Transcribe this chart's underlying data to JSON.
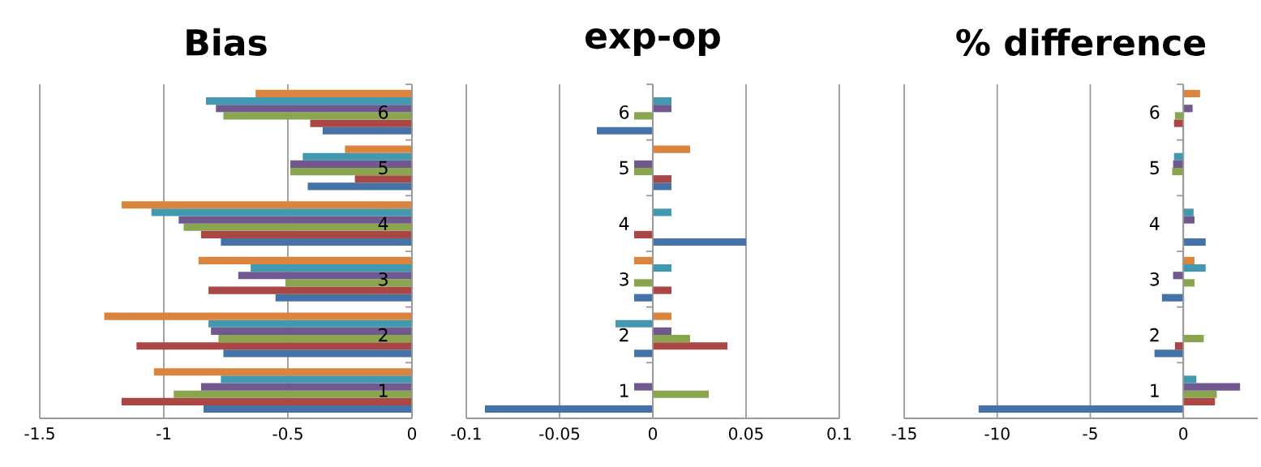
{
  "chart_data": [
    {
      "type": "bar",
      "orientation": "horizontal",
      "title": "Bias",
      "categories": [
        "6",
        "5",
        "4",
        "3",
        "2",
        "1"
      ],
      "xlim": [
        -1.5,
        0
      ],
      "xticks": [
        -1.5,
        -1,
        -0.5,
        0
      ],
      "grid": "x",
      "series": [
        {
          "color": "#4572a7",
          "values": [
            -0.36,
            -0.42,
            -0.77,
            -0.55,
            -0.76,
            -0.84
          ]
        },
        {
          "color": "#aa4643",
          "values": [
            -0.41,
            -0.23,
            -0.85,
            -0.82,
            -1.11,
            -1.17
          ]
        },
        {
          "color": "#89a54e",
          "values": [
            -0.76,
            -0.49,
            -0.92,
            -0.51,
            -0.78,
            -0.96
          ]
        },
        {
          "color": "#71588f",
          "values": [
            -0.79,
            -0.49,
            -0.94,
            -0.7,
            -0.81,
            -0.85
          ]
        },
        {
          "color": "#4198af",
          "values": [
            -0.83,
            -0.44,
            -1.05,
            -0.65,
            -0.82,
            -0.77
          ]
        },
        {
          "color": "#db843d",
          "values": [
            -0.63,
            -0.27,
            -1.17,
            -0.86,
            -1.24,
            -1.04
          ]
        }
      ]
    },
    {
      "type": "bar",
      "orientation": "horizontal",
      "title": "exp-op",
      "categories": [
        "6",
        "5",
        "4",
        "3",
        "2",
        "1"
      ],
      "xlim": [
        -0.1,
        0.1
      ],
      "xticks": [
        -0.1,
        -0.05,
        0,
        0.05,
        0.1
      ],
      "grid": "x",
      "series": [
        {
          "color": "#4572a7",
          "values": [
            -0.03,
            0.01,
            0.05,
            -0.01,
            -0.01,
            -0.09
          ]
        },
        {
          "color": "#aa4643",
          "values": [
            0,
            0.01,
            -0.01,
            0.01,
            0.04,
            0
          ]
        },
        {
          "color": "#89a54e",
          "values": [
            -0.01,
            -0.01,
            0,
            -0.01,
            0.02,
            0.03
          ]
        },
        {
          "color": "#71588f",
          "values": [
            0.01,
            -0.01,
            0,
            0,
            0.01,
            -0.01
          ]
        },
        {
          "color": "#4198af",
          "values": [
            0.01,
            0,
            0.01,
            0.01,
            -0.02,
            0
          ]
        },
        {
          "color": "#db843d",
          "values": [
            0,
            0.02,
            0,
            -0.01,
            0.01,
            0
          ]
        }
      ]
    },
    {
      "type": "bar",
      "orientation": "horizontal",
      "title": "% difference",
      "categories": [
        "6",
        "5",
        "4",
        "3",
        "2",
        "1"
      ],
      "xlim": [
        -15,
        4
      ],
      "xticks": [
        -15,
        -10,
        -5,
        0
      ],
      "grid": "x",
      "series": [
        {
          "color": "#4572a7",
          "values": [
            0,
            0,
            1.2,
            -1.15,
            -1.55,
            -11.0
          ]
        },
        {
          "color": "#aa4643",
          "values": [
            -0.5,
            0,
            0,
            0,
            -0.45,
            1.7
          ]
        },
        {
          "color": "#89a54e",
          "values": [
            -0.45,
            -0.6,
            0,
            0.6,
            1.1,
            1.8
          ]
        },
        {
          "color": "#71588f",
          "values": [
            0.5,
            -0.55,
            0.6,
            -0.55,
            0,
            3.05
          ]
        },
        {
          "color": "#4198af",
          "values": [
            0,
            -0.5,
            0.55,
            1.2,
            0,
            0.7
          ]
        },
        {
          "color": "#db843d",
          "values": [
            0.9,
            0,
            0,
            0.6,
            0,
            0
          ]
        }
      ]
    }
  ]
}
